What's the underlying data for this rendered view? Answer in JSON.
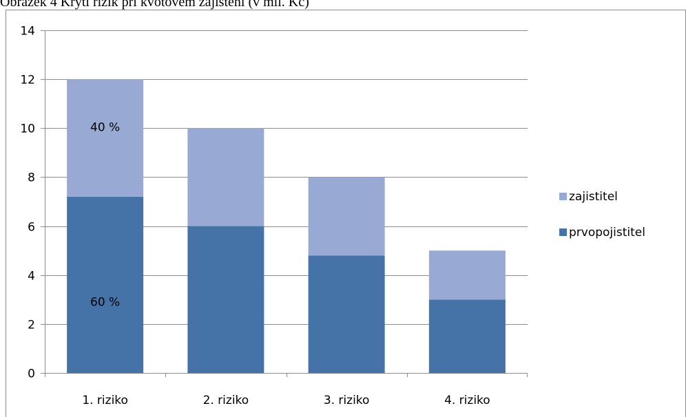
{
  "caption": "Obrázek 4 Krytí rizik při kvótovém zajištění (v mil. Kč)",
  "colors": {
    "prvopojistitel": "#4572a7",
    "zajistitel": "#98aad4",
    "grid": "#8c8c8c",
    "text": "#000000"
  },
  "chart_data": {
    "type": "bar",
    "stacked": true,
    "categories": [
      "1. riziko",
      "2. riziko",
      "3. riziko",
      "4. riziko"
    ],
    "series": [
      {
        "name": "prvopojistitel",
        "values": [
          7.2,
          6,
          4.8,
          3
        ],
        "color": "#4572a7"
      },
      {
        "name": "zajistitel",
        "values": [
          4.8,
          4,
          3.2,
          2
        ],
        "color": "#98aad4"
      }
    ],
    "ylim": [
      0,
      14
    ],
    "yticks": [
      0,
      2,
      4,
      6,
      8,
      10,
      12,
      14
    ],
    "grid": true,
    "legend": "right",
    "annotations": [
      {
        "text": "40 %",
        "category": "1. riziko",
        "series": "zajistitel"
      },
      {
        "text": "60 %",
        "category": "1. riziko",
        "series": "prvopojistitel"
      }
    ]
  }
}
